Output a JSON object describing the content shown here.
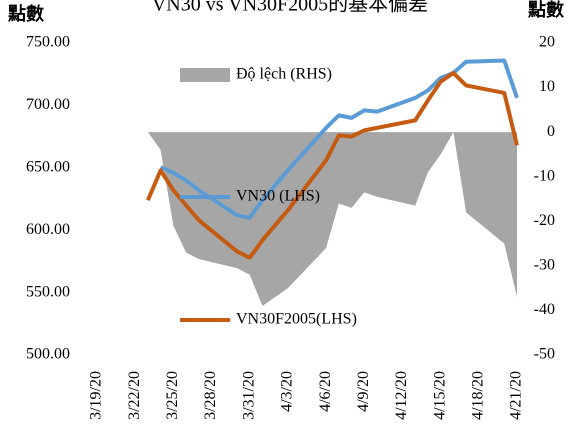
{
  "chart_data": {
    "type": "line",
    "title": "VN30 vs VN30F2005的基本偏差",
    "ylabel": "點數",
    "y2label": "點數",
    "x": [
      "3/23/20",
      "3/24/20",
      "3/25/20",
      "3/26/20",
      "3/27/20",
      "3/30/20",
      "3/31/20",
      "4/1/20",
      "4/2/20",
      "4/3/20",
      "4/6/20",
      "4/7/20",
      "4/8/20",
      "4/9/20",
      "4/10/20",
      "4/13/20",
      "4/14/20",
      "4/15/20",
      "4/16/20",
      "4/17/20",
      "4/20/20",
      "4/21/20"
    ],
    "series": [
      {
        "name": "Độ lệch (RHS)",
        "kind": "area",
        "axis": "y2",
        "color": "#a6a6a6",
        "values": [
          0,
          -4,
          -21,
          -27,
          -28.5,
          -30.5,
          -32,
          -39,
          -37,
          -35,
          -26,
          -16,
          -17,
          -13.5,
          -14.5,
          -16.5,
          -9,
          -5,
          0,
          -18,
          -25,
          -37
        ]
      },
      {
        "name": "VN30 (LHS)",
        "kind": "line",
        "axis": "y",
        "color": "#5b9bd5",
        "values": [
          null,
          650.6,
          646,
          640,
          632,
          612,
          610,
          624,
          636,
          648,
          682,
          692,
          690,
          696,
          695,
          706,
          712,
          722,
          726,
          735,
          736,
          706
        ]
      },
      {
        "name": "VN30F2005(LHS)",
        "kind": "line",
        "axis": "y",
        "color": "#c55a11",
        "values": [
          624,
          648,
          632,
          620,
          608,
          583,
          578,
          592,
          604,
          616,
          656,
          676,
          675,
          680,
          682,
          688,
          704,
          719,
          726,
          716,
          710,
          668
        ]
      }
    ],
    "xlim": [
      "3/19/20",
      "4/21/20"
    ],
    "xticks": [
      "3/19/20",
      "3/22/20",
      "3/25/20",
      "3/28/20",
      "3/31/20",
      "4/3/20",
      "4/6/20",
      "4/9/20",
      "4/12/20",
      "4/15/20",
      "4/18/20",
      "4/21/20"
    ],
    "ylim": [
      500,
      750
    ],
    "yticks": [
      {
        "value": 500,
        "label": "500.00"
      },
      {
        "value": 550,
        "label": "550.00"
      },
      {
        "value": 600,
        "label": "600.00"
      },
      {
        "value": 650,
        "label": "650.00"
      },
      {
        "value": 700,
        "label": "700.00"
      },
      {
        "value": 750,
        "label": "750.00"
      }
    ],
    "y2lim": [
      -50,
      20
    ],
    "y2ticks": [
      -50,
      -40,
      -30,
      -20,
      -10,
      0,
      10,
      20
    ]
  }
}
